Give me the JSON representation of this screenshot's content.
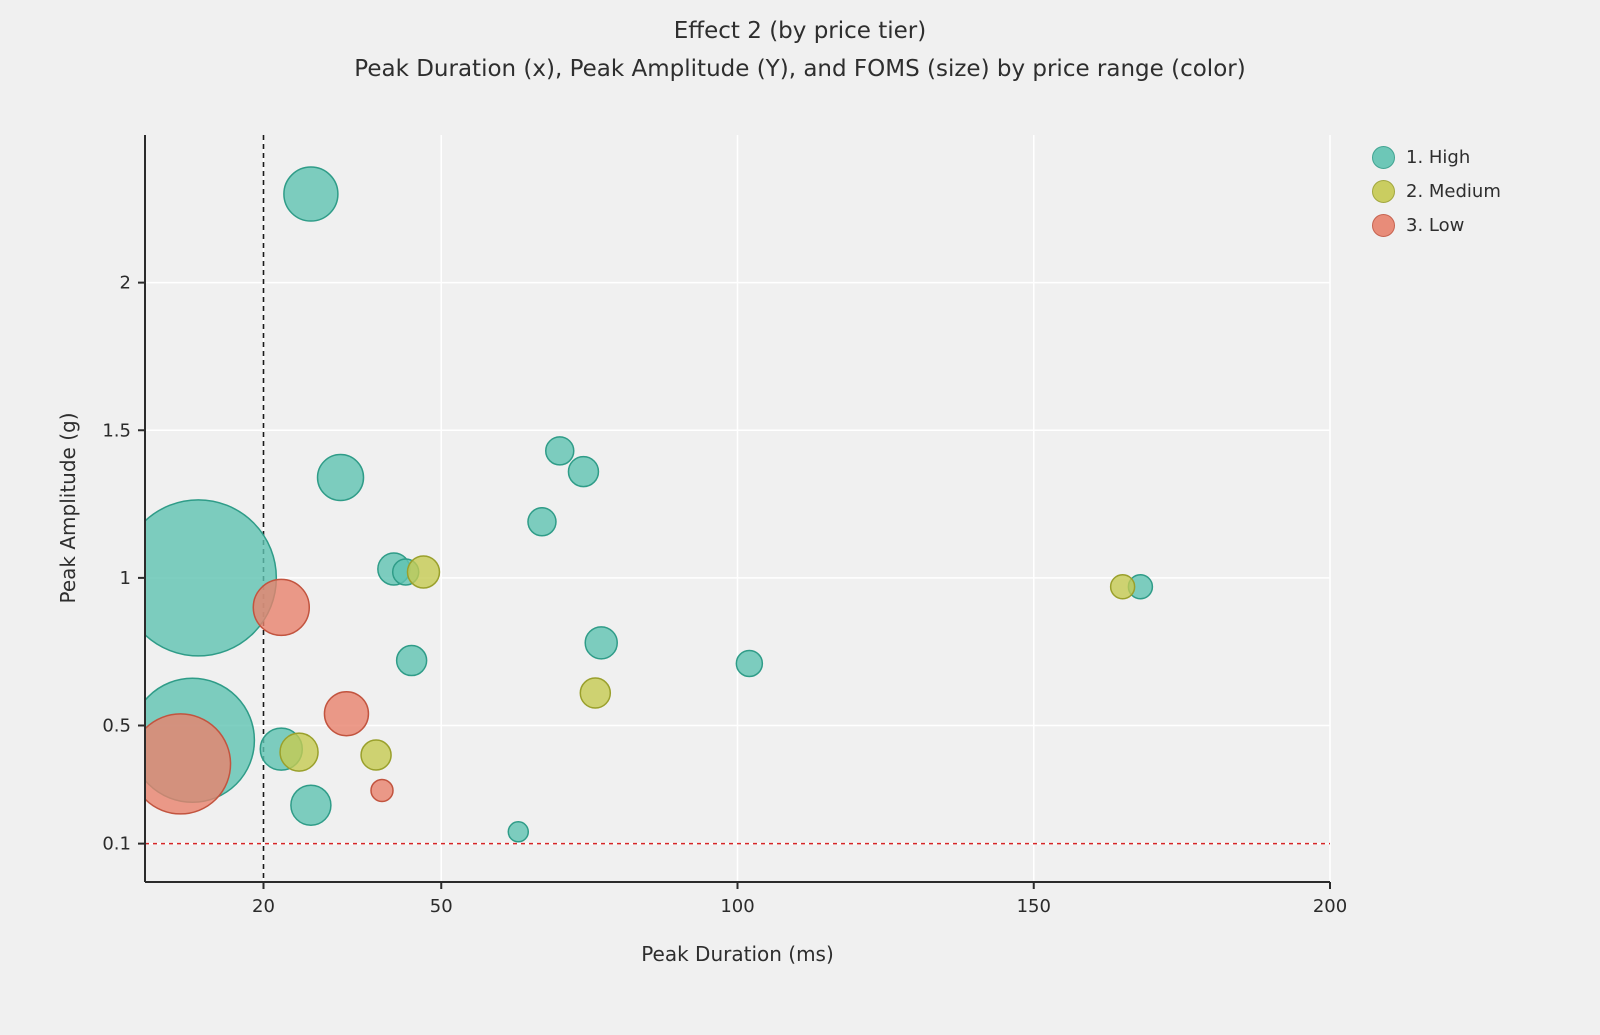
{
  "title": "Effect 2 (by price tier)",
  "subtitle": "Peak Duration (x), Peak Amplitude (Y), and FOMS (size) by price range (color)",
  "chart_data": {
    "type": "scatter",
    "title": "Effect 2 (by price tier)",
    "subtitle": "Peak Duration (x), Peak Amplitude (Y), and FOMS (size) by price range (color)",
    "xlabel": "Peak Duration (ms)",
    "ylabel": "Peak Amplitude (g)",
    "xlim": [
      0,
      200
    ],
    "ylim": [
      -0.03,
      2.5
    ],
    "xticks": [
      20,
      50,
      100,
      150,
      200
    ],
    "yticks": [
      0.1,
      0.5,
      1,
      1.5,
      2
    ],
    "grid": true,
    "legend_position": "upper right",
    "size_encoding": "FOMS (bubble radius in px)",
    "reference_lines": [
      {
        "axis": "x",
        "value": 20,
        "color": "#1a1a1a",
        "dash": "5 4"
      },
      {
        "axis": "y",
        "value": 0.1,
        "color": "#d62728",
        "dash": "4 4"
      }
    ],
    "series": [
      {
        "name": "1. High",
        "color": "#5fc3b1",
        "edge": "#2f9c88",
        "points": [
          {
            "x": 9,
            "y": 1.0,
            "r": 78
          },
          {
            "x": 8,
            "y": 0.45,
            "r": 62
          },
          {
            "x": 28,
            "y": 2.3,
            "r": 27
          },
          {
            "x": 33,
            "y": 1.34,
            "r": 23
          },
          {
            "x": 70,
            "y": 1.43,
            "r": 14
          },
          {
            "x": 74,
            "y": 1.36,
            "r": 15
          },
          {
            "x": 67,
            "y": 1.19,
            "r": 14
          },
          {
            "x": 42,
            "y": 1.03,
            "r": 16
          },
          {
            "x": 44,
            "y": 1.02,
            "r": 13
          },
          {
            "x": 45,
            "y": 0.72,
            "r": 15
          },
          {
            "x": 77,
            "y": 0.78,
            "r": 16
          },
          {
            "x": 102,
            "y": 0.71,
            "r": 13
          },
          {
            "x": 168,
            "y": 0.97,
            "r": 12
          },
          {
            "x": 23,
            "y": 0.42,
            "r": 21
          },
          {
            "x": 28,
            "y": 0.23,
            "r": 20
          },
          {
            "x": 63,
            "y": 0.14,
            "r": 10
          }
        ]
      },
      {
        "name": "2. Medium",
        "color": "#c6ca51",
        "edge": "#9aa02c",
        "points": [
          {
            "x": 47,
            "y": 1.02,
            "r": 16
          },
          {
            "x": 76,
            "y": 0.61,
            "r": 15
          },
          {
            "x": 165,
            "y": 0.97,
            "r": 12
          },
          {
            "x": 26,
            "y": 0.41,
            "r": 19
          },
          {
            "x": 39,
            "y": 0.4,
            "r": 15
          }
        ]
      },
      {
        "name": "3. Low",
        "color": "#e8826d",
        "edge": "#c2543f",
        "points": [
          {
            "x": 23,
            "y": 0.9,
            "r": 28
          },
          {
            "x": 6,
            "y": 0.37,
            "r": 50
          },
          {
            "x": 34,
            "y": 0.54,
            "r": 22
          },
          {
            "x": 40,
            "y": 0.28,
            "r": 11
          }
        ]
      }
    ]
  }
}
